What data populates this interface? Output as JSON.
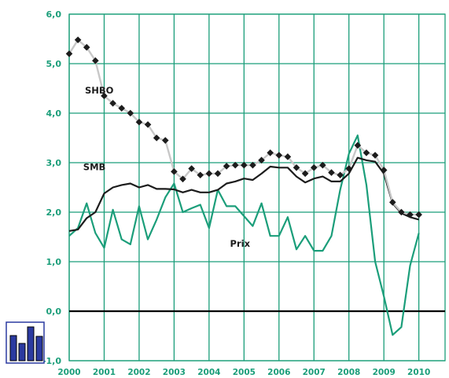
{
  "chart_data": {
    "type": "line",
    "ylim": [
      -1.0,
      6.0
    ],
    "xlim": [
      2000,
      2010.75
    ],
    "y_ticks": [
      "6,0",
      "5,0",
      "4,0",
      "3,0",
      "2,0",
      "1,0",
      "0,0",
      "-1,0"
    ],
    "x_ticks": [
      "2000",
      "2001",
      "2002",
      "2003",
      "2004",
      "2005",
      "2006",
      "2007",
      "2008",
      "2009",
      "2010"
    ],
    "grid": true,
    "zero_line": true,
    "series": [
      {
        "name": "SHBO",
        "color": "#c8c8c8",
        "marker": "diamond",
        "marker_color": "#1c1c1c",
        "x": [
          2000.0,
          2000.25,
          2000.5,
          2000.75,
          2001.0,
          2001.25,
          2001.5,
          2001.75,
          2002.0,
          2002.25,
          2002.5,
          2002.75,
          2003.0,
          2003.25,
          2003.5,
          2003.75,
          2004.0,
          2004.25,
          2004.5,
          2004.75,
          2005.0,
          2005.25,
          2005.5,
          2005.75,
          2006.0,
          2006.25,
          2006.5,
          2006.75,
          2007.0,
          2007.25,
          2007.5,
          2007.75,
          2008.0,
          2008.25,
          2008.5,
          2008.75,
          2009.0,
          2009.25,
          2009.5,
          2009.75,
          2010.0
        ],
        "values": [
          5.2,
          5.48,
          5.33,
          5.06,
          4.35,
          4.2,
          4.1,
          4.0,
          3.82,
          3.77,
          3.5,
          3.45,
          2.82,
          2.67,
          2.88,
          2.75,
          2.78,
          2.78,
          2.93,
          2.95,
          2.95,
          2.95,
          3.05,
          3.2,
          3.15,
          3.12,
          2.9,
          2.78,
          2.9,
          2.95,
          2.8,
          2.75,
          2.88,
          3.35,
          3.2,
          3.15,
          2.85,
          2.2,
          2.0,
          1.95,
          1.95
        ]
      },
      {
        "name": "SMB",
        "color": "#1c1c1c",
        "x": [
          2000.0,
          2000.25,
          2000.5,
          2000.75,
          2001.0,
          2001.25,
          2001.5,
          2001.75,
          2002.0,
          2002.25,
          2002.5,
          2002.75,
          2003.0,
          2003.25,
          2003.5,
          2003.75,
          2004.0,
          2004.25,
          2004.5,
          2004.75,
          2005.0,
          2005.25,
          2005.5,
          2005.75,
          2006.0,
          2006.25,
          2006.5,
          2006.75,
          2007.0,
          2007.25,
          2007.5,
          2007.75,
          2008.0,
          2008.25,
          2008.5,
          2008.75,
          2009.0,
          2009.25,
          2009.5,
          2009.75,
          2010.0
        ],
        "values": [
          1.62,
          1.65,
          1.88,
          2.0,
          2.38,
          2.5,
          2.55,
          2.58,
          2.5,
          2.55,
          2.47,
          2.47,
          2.46,
          2.4,
          2.45,
          2.4,
          2.4,
          2.45,
          2.58,
          2.62,
          2.68,
          2.65,
          2.78,
          2.92,
          2.9,
          2.9,
          2.72,
          2.6,
          2.68,
          2.72,
          2.62,
          2.62,
          2.78,
          3.1,
          3.05,
          3.02,
          2.78,
          2.18,
          1.98,
          1.9,
          1.85
        ]
      },
      {
        "name": "Prix",
        "color": "#1b9e7a",
        "x": [
          2000.0,
          2000.25,
          2000.5,
          2000.75,
          2001.0,
          2001.25,
          2001.5,
          2001.75,
          2002.0,
          2002.25,
          2002.5,
          2002.75,
          2003.0,
          2003.25,
          2003.5,
          2003.75,
          2004.0,
          2004.25,
          2004.5,
          2004.75,
          2005.0,
          2005.25,
          2005.5,
          2005.75,
          2006.0,
          2006.25,
          2006.5,
          2006.75,
          2007.0,
          2007.25,
          2007.5,
          2007.75,
          2008.0,
          2008.25,
          2008.5,
          2008.75,
          2009.0,
          2009.25,
          2009.5,
          2009.75,
          2010.0
        ],
        "values": [
          1.52,
          1.68,
          2.18,
          1.58,
          1.28,
          2.05,
          1.45,
          1.35,
          2.12,
          1.45,
          1.85,
          2.3,
          2.58,
          2.0,
          2.08,
          2.15,
          1.68,
          2.45,
          2.12,
          2.12,
          1.92,
          1.72,
          2.18,
          1.52,
          1.52,
          1.9,
          1.25,
          1.52,
          1.22,
          1.22,
          1.52,
          2.45,
          3.18,
          3.55,
          2.55,
          1.0,
          0.3,
          -0.48,
          -0.32,
          0.92,
          1.58
        ]
      }
    ],
    "series_labels": [
      {
        "name": "SHBO",
        "x": 2000.45,
        "y": 4.4
      },
      {
        "name": "SMB",
        "x": 2000.4,
        "y": 2.85
      },
      {
        "name": "Prix",
        "x": 2004.6,
        "y": 1.3
      }
    ]
  },
  "logo": {
    "icon": "bar-chart-icon",
    "colors": [
      "#2b3aa0",
      "#1b9e7a",
      "#000000"
    ]
  }
}
